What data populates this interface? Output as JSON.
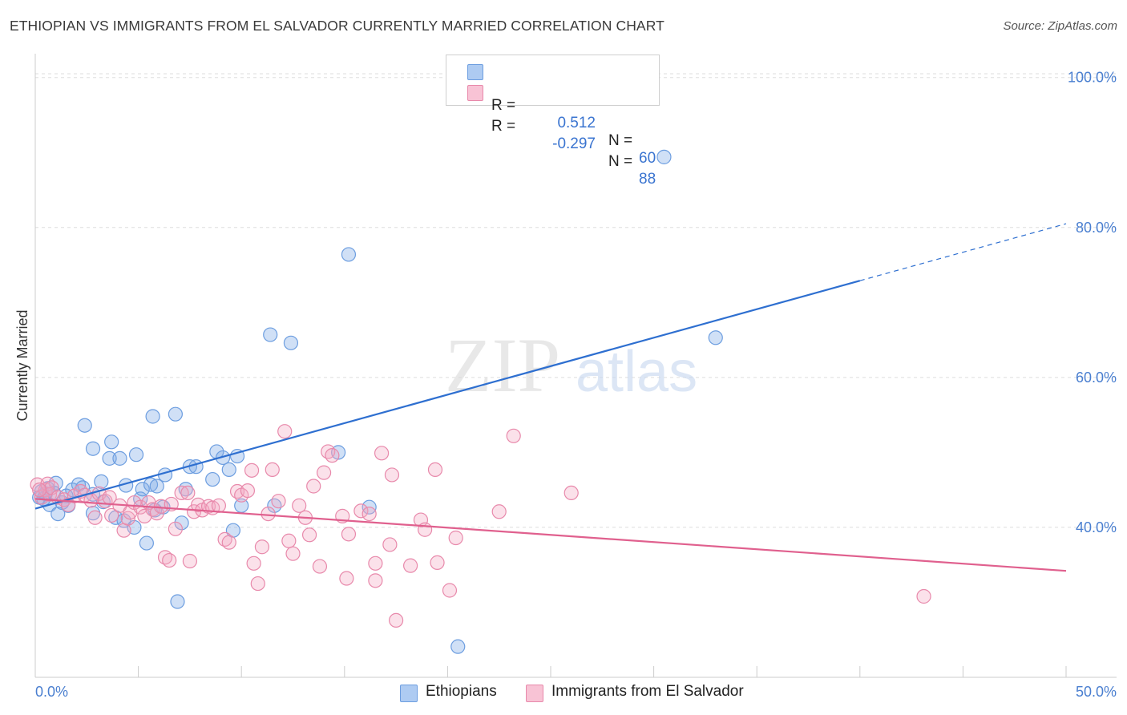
{
  "header": {
    "title": "ETHIOPIAN VS IMMIGRANTS FROM EL SALVADOR CURRENTLY MARRIED CORRELATION CHART",
    "source": "Source: ZipAtlas.com"
  },
  "watermark": {
    "zip": "ZIP",
    "atlas": "atlas"
  },
  "legend": {
    "rows": [
      {
        "r_label": "R =",
        "r_value": "0.512",
        "n_label": "N =",
        "n_value": "60",
        "color": "#aecbf2",
        "border": "#6d9ee0"
      },
      {
        "r_label": "R =",
        "r_value": "-0.297",
        "n_label": "N =",
        "n_value": "88",
        "color": "#f8c3d5",
        "border": "#e889ab"
      }
    ]
  },
  "bottom_legend": {
    "series1": "Ethiopians",
    "series2": "Immigrants from El Salvador"
  },
  "axes": {
    "ylabel": "Currently Married",
    "y_ticks": [
      "100.0%",
      "80.0%",
      "60.0%",
      "40.0%"
    ],
    "x_min_label": "0.0%",
    "x_max_label": "50.0%"
  },
  "chart_data": {
    "type": "scatter",
    "xlabel": "",
    "ylabel": "Currently Married",
    "xlim": [
      0,
      50
    ],
    "ylim": [
      20,
      102
    ],
    "y_ticks": [
      40,
      60,
      80,
      100
    ],
    "grid": "dashed horizontal",
    "legend_position": "top-center",
    "series": [
      {
        "name": "Ethiopians",
        "color": "#6d9ee0",
        "fill": "rgba(120,165,230,0.35)",
        "trend": {
          "x": [
            0,
            40
          ],
          "y": [
            42.5,
            72.9
          ],
          "dashed_to": [
            50,
            80.5
          ],
          "color": "#2e6fd0"
        },
        "points": [
          [
            0.3,
            44.8
          ],
          [
            0.4,
            43.8
          ],
          [
            0.5,
            44.5
          ],
          [
            0.6,
            45.2
          ],
          [
            0.7,
            43.0
          ],
          [
            0.9,
            44.6
          ],
          [
            1.0,
            45.9
          ],
          [
            1.1,
            41.8
          ],
          [
            1.3,
            43.3
          ],
          [
            1.6,
            42.9
          ],
          [
            1.8,
            45.0
          ],
          [
            2.1,
            45.7
          ],
          [
            2.3,
            45.3
          ],
          [
            2.4,
            53.6
          ],
          [
            2.8,
            50.5
          ],
          [
            2.8,
            41.9
          ],
          [
            2.8,
            44.4
          ],
          [
            3.2,
            46.1
          ],
          [
            3.3,
            43.4
          ],
          [
            3.6,
            49.2
          ],
          [
            3.7,
            51.4
          ],
          [
            3.9,
            41.3
          ],
          [
            4.1,
            49.2
          ],
          [
            4.3,
            40.9
          ],
          [
            4.4,
            45.6
          ],
          [
            4.8,
            40.0
          ],
          [
            4.9,
            49.7
          ],
          [
            5.1,
            43.8
          ],
          [
            5.2,
            45.1
          ],
          [
            5.4,
            37.9
          ],
          [
            5.6,
            45.7
          ],
          [
            5.7,
            54.8
          ],
          [
            5.8,
            42.3
          ],
          [
            5.9,
            45.5
          ],
          [
            6.2,
            42.7
          ],
          [
            6.3,
            47.0
          ],
          [
            6.8,
            55.1
          ],
          [
            6.9,
            30.1
          ],
          [
            7.1,
            40.6
          ],
          [
            7.3,
            45.1
          ],
          [
            7.5,
            48.1
          ],
          [
            7.8,
            48.1
          ],
          [
            8.6,
            46.4
          ],
          [
            8.8,
            50.1
          ],
          [
            9.1,
            49.3
          ],
          [
            9.4,
            47.7
          ],
          [
            9.6,
            39.6
          ],
          [
            9.8,
            49.5
          ],
          [
            10.0,
            42.9
          ],
          [
            11.4,
            65.7
          ],
          [
            11.6,
            42.9
          ],
          [
            12.4,
            64.6
          ],
          [
            14.7,
            50.0
          ],
          [
            15.2,
            76.4
          ],
          [
            16.2,
            42.7
          ],
          [
            20.5,
            24.1
          ],
          [
            30.5,
            89.4
          ],
          [
            33.0,
            65.3
          ],
          [
            0.2,
            44.0
          ],
          [
            1.5,
            44.2
          ]
        ]
      },
      {
        "name": "Immigrants from El Salvador",
        "color": "#e889ab",
        "fill": "rgba(244,170,196,0.35)",
        "trend": {
          "x": [
            0,
            50
          ],
          "y": [
            43.8,
            34.2
          ],
          "color": "#e0608e"
        },
        "points": [
          [
            0.1,
            45.7
          ],
          [
            0.3,
            44.0
          ],
          [
            0.5,
            45.0
          ],
          [
            0.6,
            45.8
          ],
          [
            0.7,
            44.4
          ],
          [
            0.8,
            45.3
          ],
          [
            1.1,
            44.0
          ],
          [
            1.4,
            43.7
          ],
          [
            1.6,
            43.0
          ],
          [
            1.9,
            44.2
          ],
          [
            2.2,
            44.8
          ],
          [
            2.4,
            44.3
          ],
          [
            2.7,
            43.6
          ],
          [
            2.9,
            41.3
          ],
          [
            3.1,
            44.5
          ],
          [
            3.4,
            43.5
          ],
          [
            3.6,
            44.0
          ],
          [
            3.7,
            41.6
          ],
          [
            4.1,
            42.9
          ],
          [
            4.3,
            39.6
          ],
          [
            4.5,
            41.2
          ],
          [
            4.6,
            42.0
          ],
          [
            4.8,
            43.3
          ],
          [
            5.1,
            42.7
          ],
          [
            5.3,
            41.5
          ],
          [
            5.5,
            43.3
          ],
          [
            5.7,
            42.4
          ],
          [
            5.9,
            41.9
          ],
          [
            6.1,
            42.8
          ],
          [
            6.3,
            36.0
          ],
          [
            6.5,
            35.6
          ],
          [
            6.6,
            43.1
          ],
          [
            6.8,
            39.8
          ],
          [
            7.1,
            44.6
          ],
          [
            7.4,
            44.6
          ],
          [
            7.5,
            35.5
          ],
          [
            7.7,
            42.1
          ],
          [
            7.9,
            43.0
          ],
          [
            8.1,
            42.3
          ],
          [
            8.4,
            42.8
          ],
          [
            8.6,
            42.6
          ],
          [
            8.9,
            42.9
          ],
          [
            9.2,
            38.4
          ],
          [
            9.4,
            38.0
          ],
          [
            9.8,
            44.8
          ],
          [
            10.0,
            44.3
          ],
          [
            10.3,
            44.9
          ],
          [
            10.5,
            47.6
          ],
          [
            10.6,
            35.2
          ],
          [
            10.8,
            32.5
          ],
          [
            11.0,
            37.4
          ],
          [
            11.3,
            41.8
          ],
          [
            11.5,
            47.7
          ],
          [
            11.8,
            43.5
          ],
          [
            12.1,
            52.8
          ],
          [
            12.3,
            38.2
          ],
          [
            12.5,
            36.5
          ],
          [
            12.8,
            42.9
          ],
          [
            13.1,
            41.3
          ],
          [
            13.3,
            39.0
          ],
          [
            13.5,
            45.5
          ],
          [
            13.8,
            34.8
          ],
          [
            14.0,
            47.3
          ],
          [
            14.2,
            50.1
          ],
          [
            14.4,
            49.6
          ],
          [
            14.9,
            41.5
          ],
          [
            15.1,
            33.2
          ],
          [
            15.2,
            39.1
          ],
          [
            15.8,
            42.2
          ],
          [
            16.2,
            41.8
          ],
          [
            16.5,
            32.9
          ],
          [
            16.5,
            35.2
          ],
          [
            16.8,
            49.9
          ],
          [
            17.2,
            37.7
          ],
          [
            17.3,
            47.0
          ],
          [
            17.5,
            27.6
          ],
          [
            18.2,
            34.9
          ],
          [
            18.7,
            41.0
          ],
          [
            18.9,
            39.7
          ],
          [
            19.4,
            47.7
          ],
          [
            19.5,
            35.3
          ],
          [
            20.1,
            31.6
          ],
          [
            20.4,
            38.6
          ],
          [
            22.5,
            42.1
          ],
          [
            23.2,
            52.2
          ],
          [
            26.0,
            44.6
          ],
          [
            43.1,
            30.8
          ],
          [
            0.2,
            45.0
          ]
        ]
      }
    ]
  }
}
